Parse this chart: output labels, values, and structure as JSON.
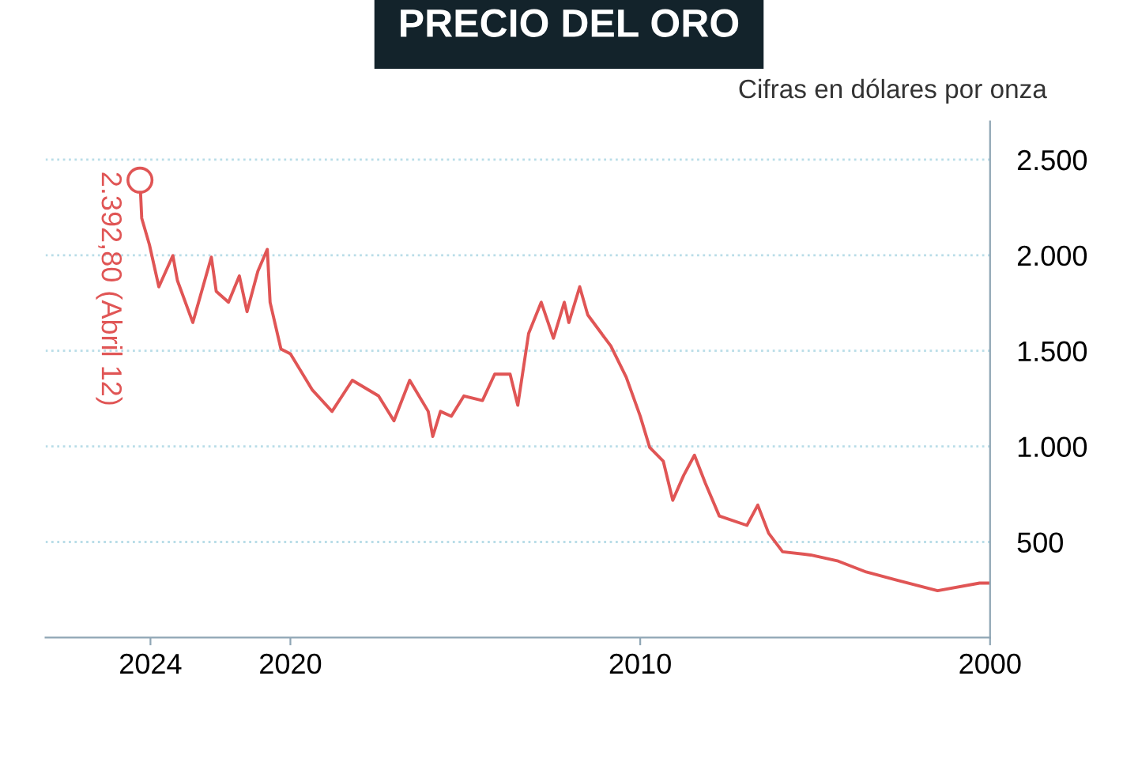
{
  "chart_data": {
    "type": "line",
    "title": "PRECIO DEL ORO",
    "subtitle": "Cifras en dólares por onza",
    "x": [
      2000.0,
      2000.3,
      2001.5,
      2002.7,
      2003.54,
      2004.34,
      2005.13,
      2005.93,
      2006.33,
      2006.64,
      2006.95,
      2007.74,
      2008.14,
      2008.45,
      2008.76,
      2009.07,
      2009.34,
      2009.73,
      2010.0,
      2010.4,
      2010.84,
      2011.5,
      2011.73,
      2012.04,
      2012.17,
      2012.48,
      2012.83,
      2013.19,
      2013.5,
      2013.72,
      2014.16,
      2014.51,
      2015.04,
      2015.4,
      2015.71,
      2015.93,
      2016.06,
      2016.59,
      2017.04,
      2017.48,
      2018.23,
      2018.81,
      2019.38,
      2020.0,
      2020.27,
      2020.58,
      2020.66,
      2020.93,
      2021.24,
      2021.46,
      2021.77,
      2022.12,
      2022.26,
      2022.79,
      2023.23,
      2023.36,
      2023.76,
      2024.03,
      2024.25,
      2024.3
    ],
    "series": [
      {
        "color": "#e05555",
        "values": [
          285,
          285,
          245,
          302,
          343,
          400,
          432,
          449,
          546,
          693,
          587,
          636,
          808,
          954,
          848,
          718,
          922,
          995,
          1158,
          1362,
          1525,
          1688,
          1835,
          1648,
          1754,
          1566,
          1754,
          1591,
          1215,
          1378,
          1378,
          1240,
          1264,
          1158,
          1183,
          1052,
          1183,
          1346,
          1134,
          1264,
          1346,
          1183,
          1297,
          1484,
          1509,
          1754,
          2031,
          1917,
          1705,
          1892,
          1754,
          1811,
          1990,
          1648,
          1868,
          1998,
          1835,
          2055,
          2194,
          2392.8
        ]
      }
    ],
    "xlim": [
      2027,
      2000
    ],
    "xticks": [
      2000,
      2010,
      2020,
      2024
    ],
    "ylim": [
      0,
      2700
    ],
    "yticks": [
      {
        "value": 500,
        "label": "500"
      },
      {
        "value": 1000,
        "label": "1.000"
      },
      {
        "value": 1500,
        "label": "1.500"
      },
      {
        "value": 2000,
        "label": "2.000"
      },
      {
        "value": 2500,
        "label": "2.500"
      }
    ],
    "grid": "y",
    "legend": false,
    "annotations": [
      {
        "text": "2.392,80 (Abril 12)",
        "x": 2024.3,
        "y": 2392.8
      }
    ]
  }
}
